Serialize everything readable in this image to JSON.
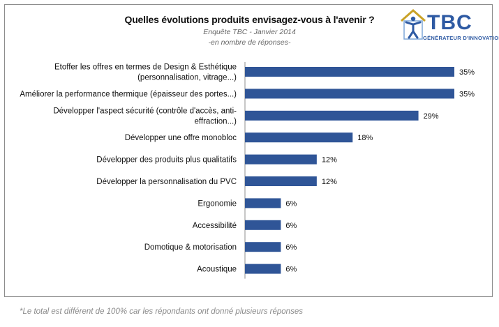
{
  "logo": {
    "text": "TBC",
    "tagline": "GÉNÉRATEUR D'INNOVATION®"
  },
  "footnote": "*Le total est différent de 100% car les répondants ont donné plusieurs réponses",
  "colors": {
    "bar": "#2f5597",
    "frame": "#8c8c8c"
  },
  "chart_data": {
    "type": "bar",
    "orientation": "horizontal",
    "title": "Quelles évolutions produits envisagez-vous à l'avenir ?",
    "subtitle": "Enquête TBC - Janvier 2014",
    "subtitle2": "-en nombre de réponses-",
    "categories": [
      [
        "Etoffer les offres en termes de Design & Esthétique",
        "(personnalisation, vitrage...)"
      ],
      [
        "Améliorer la performance thermique (épaisseur des portes...)"
      ],
      [
        "Développer l'aspect sécurité (contrôle d'accès, anti-",
        "effraction...)"
      ],
      [
        "Développer une offre monobloc"
      ],
      [
        "Développer des produits plus qualitatifs"
      ],
      [
        "Développer la personnalisation  du PVC"
      ],
      [
        "Ergonomie"
      ],
      [
        "Accessibilité"
      ],
      [
        "Domotique & motorisation"
      ],
      [
        "Acoustique"
      ]
    ],
    "values": [
      35,
      35,
      29,
      18,
      12,
      12,
      6,
      6,
      6,
      6
    ],
    "value_labels": [
      "35%",
      "35%",
      "29%",
      "18%",
      "12%",
      "12%",
      "6%",
      "6%",
      "6%",
      "6%"
    ],
    "xlim": [
      0,
      35
    ],
    "grid": false,
    "legend": "none"
  }
}
